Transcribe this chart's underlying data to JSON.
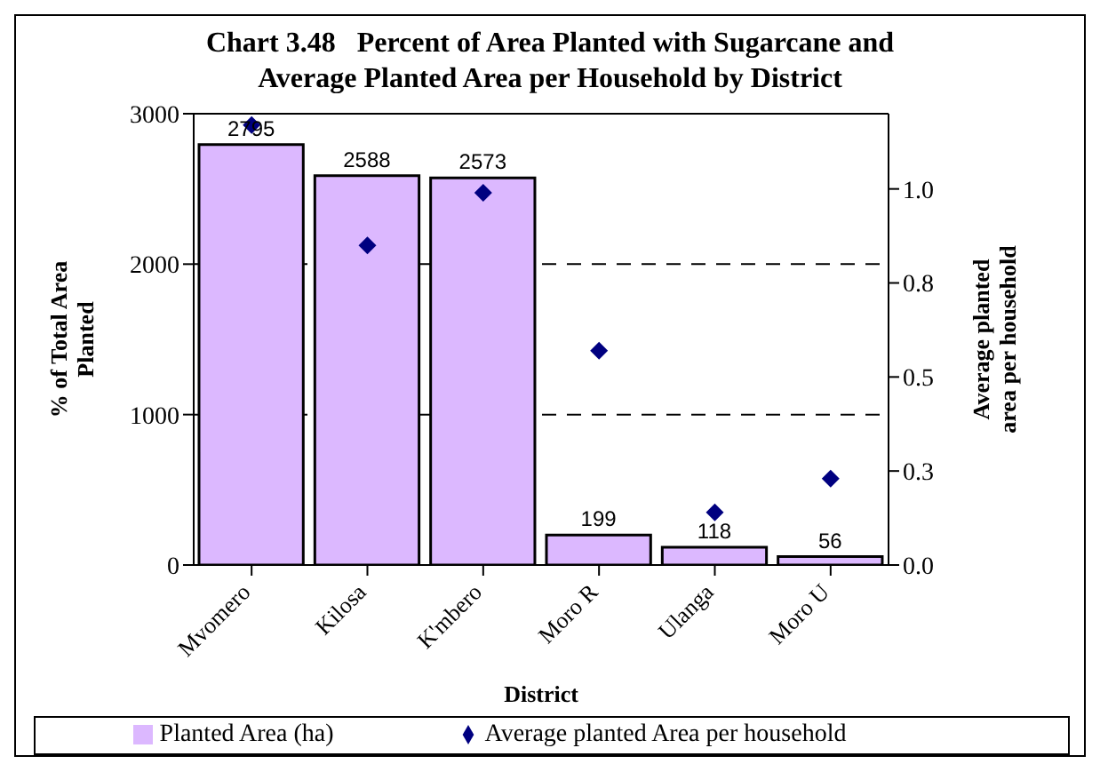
{
  "chart_data": {
    "type": "bar",
    "title": "Chart 3.48   Percent of Area Planted with Sugarcane and Average Planted Area per Household by District",
    "xlabel": "District",
    "ylabel": "% of Total Area Planted",
    "y2label": "Average planted area per household",
    "categories": [
      "Mvomero",
      "Kilosa",
      "K'mbero",
      "Moro R",
      "Ulanga",
      "Moro U"
    ],
    "series": [
      {
        "name": "Planted Area (ha)",
        "color": "#dcb8ff",
        "values": [
          2795,
          2588,
          2573,
          199,
          118,
          56
        ],
        "value_labels": [
          "2795",
          "2588",
          "2573",
          "199",
          "118",
          "56"
        ]
      },
      {
        "name": "Average planted Area per household",
        "type": "scatter",
        "axis": "y2",
        "color": "#000080",
        "values": [
          1.17,
          0.85,
          0.99,
          0.57,
          0.14,
          0.23
        ]
      }
    ],
    "ylim": [
      0,
      3000
    ],
    "yticks": [
      0,
      1000,
      2000,
      3000
    ],
    "y2lim": [
      0,
      1.2
    ],
    "y2ticks": [
      {
        "value": 0,
        "label": "0.0"
      },
      {
        "value": 0.25,
        "label": "0.3"
      },
      {
        "value": 0.5,
        "label": "0.5"
      },
      {
        "value": 0.75,
        "label": "0.8"
      },
      {
        "value": 1,
        "label": "1.0"
      }
    ],
    "grid": "y",
    "legend": "bottom",
    "marker": "diamond"
  }
}
